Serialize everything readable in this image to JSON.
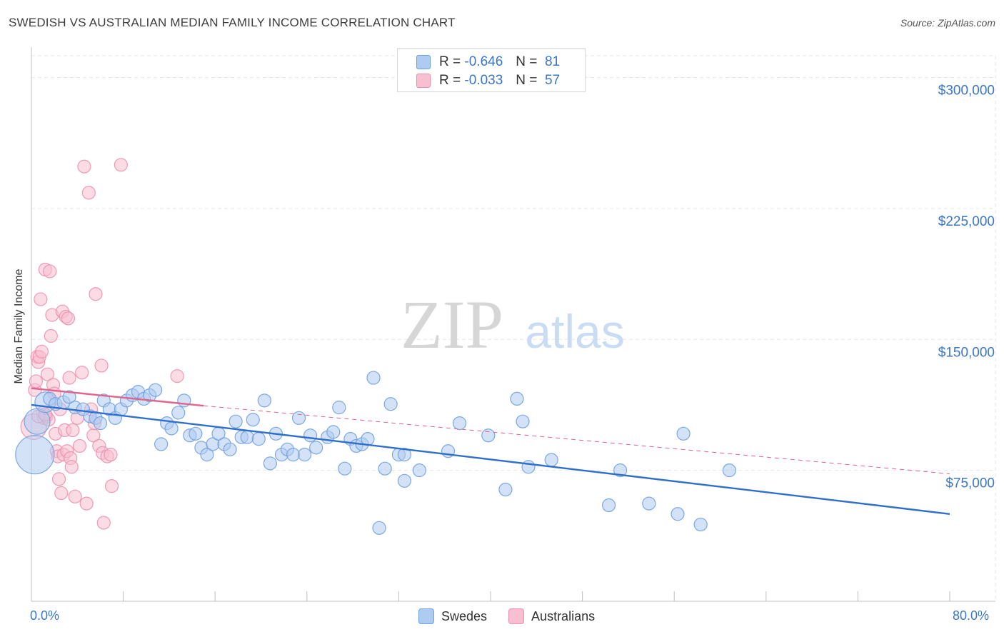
{
  "header": {
    "title": "SWEDISH VS AUSTRALIAN MEDIAN FAMILY INCOME CORRELATION CHART",
    "source": "Source: ZipAtlas.com"
  },
  "watermark": {
    "part1": "ZIP",
    "part2": "atlas"
  },
  "legend": {
    "rows": [
      {
        "r_label": "R =",
        "r_value": "-0.646",
        "n_label": "N =",
        "n_value": "81"
      },
      {
        "r_label": "R =",
        "r_value": "-0.033",
        "n_label": "N =",
        "n_value": "57"
      }
    ]
  },
  "colors": {
    "swedes_fill": "#aecbf1",
    "swedes_stroke": "#6fa0e0",
    "swedes_line": "#2f6fcc",
    "australians_fill": "#f7bfd0",
    "australians_stroke": "#ec8fae",
    "australians_line": "#e0648e",
    "axis_label": "#3a76c9",
    "grid": "#e6e6e6"
  },
  "chart_data": {
    "type": "scatter",
    "title": "SWEDISH VS AUSTRALIAN MEDIAN FAMILY INCOME CORRELATION CHART",
    "xlabel": "",
    "ylabel": "Median Family Income",
    "xlim": [
      0,
      80
    ],
    "ylim": [
      0,
      312500
    ],
    "x_tick_labels": [
      "0.0%",
      "80.0%"
    ],
    "y_ticks": [
      75000,
      150000,
      225000,
      300000
    ],
    "y_tick_labels": [
      "$75,000",
      "$150,000",
      "$225,000",
      "$300,000"
    ],
    "grid": true,
    "series": [
      {
        "name": "Swedes",
        "r": -0.646,
        "n": 81,
        "trend": {
          "x": [
            0,
            80
          ],
          "y": [
            112500,
            50000
          ]
        },
        "points": [
          {
            "x": 0.3,
            "y": 84000,
            "s": 3
          },
          {
            "x": 0.5,
            "y": 103000,
            "s": 2
          },
          {
            "x": 1.2,
            "y": 114000,
            "s": 1.6
          },
          {
            "x": 1.6,
            "y": 116000
          },
          {
            "x": 2.1,
            "y": 113000
          },
          {
            "x": 2.8,
            "y": 114000
          },
          {
            "x": 3.3,
            "y": 117000
          },
          {
            "x": 3.8,
            "y": 111000
          },
          {
            "x": 4.5,
            "y": 110000
          },
          {
            "x": 5.1,
            "y": 106000
          },
          {
            "x": 5.6,
            "y": 105000
          },
          {
            "x": 6.0,
            "y": 102000
          },
          {
            "x": 6.3,
            "y": 115000
          },
          {
            "x": 6.8,
            "y": 110000
          },
          {
            "x": 7.3,
            "y": 105000
          },
          {
            "x": 7.8,
            "y": 110000
          },
          {
            "x": 8.3,
            "y": 115000
          },
          {
            "x": 8.8,
            "y": 118000
          },
          {
            "x": 9.3,
            "y": 120000
          },
          {
            "x": 9.8,
            "y": 116000
          },
          {
            "x": 10.3,
            "y": 118000
          },
          {
            "x": 10.8,
            "y": 121000
          },
          {
            "x": 11.3,
            "y": 90000
          },
          {
            "x": 11.8,
            "y": 102000
          },
          {
            "x": 12.2,
            "y": 99000
          },
          {
            "x": 12.8,
            "y": 108000
          },
          {
            "x": 13.3,
            "y": 115000
          },
          {
            "x": 13.8,
            "y": 95000
          },
          {
            "x": 14.3,
            "y": 96000
          },
          {
            "x": 14.8,
            "y": 88000
          },
          {
            "x": 15.3,
            "y": 84000
          },
          {
            "x": 15.8,
            "y": 90000
          },
          {
            "x": 16.3,
            "y": 96000
          },
          {
            "x": 16.8,
            "y": 90000
          },
          {
            "x": 17.3,
            "y": 87000
          },
          {
            "x": 17.8,
            "y": 103000
          },
          {
            "x": 18.3,
            "y": 94000
          },
          {
            "x": 18.8,
            "y": 94000
          },
          {
            "x": 19.3,
            "y": 104000
          },
          {
            "x": 19.8,
            "y": 93000
          },
          {
            "x": 20.3,
            "y": 115000
          },
          {
            "x": 20.8,
            "y": 79000
          },
          {
            "x": 21.3,
            "y": 96000
          },
          {
            "x": 21.8,
            "y": 84000
          },
          {
            "x": 22.3,
            "y": 87000
          },
          {
            "x": 22.8,
            "y": 84000
          },
          {
            "x": 23.3,
            "y": 105000
          },
          {
            "x": 23.8,
            "y": 84000
          },
          {
            "x": 24.3,
            "y": 95000
          },
          {
            "x": 24.8,
            "y": 88000
          },
          {
            "x": 25.8,
            "y": 94000
          },
          {
            "x": 26.3,
            "y": 97000
          },
          {
            "x": 26.8,
            "y": 111000
          },
          {
            "x": 27.3,
            "y": 76000
          },
          {
            "x": 27.8,
            "y": 93000
          },
          {
            "x": 28.3,
            "y": 89000
          },
          {
            "x": 28.8,
            "y": 90000
          },
          {
            "x": 29.3,
            "y": 93000
          },
          {
            "x": 29.8,
            "y": 128000
          },
          {
            "x": 30.3,
            "y": 42000
          },
          {
            "x": 30.8,
            "y": 76000
          },
          {
            "x": 31.3,
            "y": 113000
          },
          {
            "x": 32.0,
            "y": 84000
          },
          {
            "x": 32.5,
            "y": 84000
          },
          {
            "x": 32.5,
            "y": 69000
          },
          {
            "x": 33.8,
            "y": 75000
          },
          {
            "x": 36.3,
            "y": 86000
          },
          {
            "x": 37.3,
            "y": 102000
          },
          {
            "x": 39.8,
            "y": 95000
          },
          {
            "x": 41.3,
            "y": 64000
          },
          {
            "x": 42.3,
            "y": 116000
          },
          {
            "x": 42.8,
            "y": 103000
          },
          {
            "x": 43.3,
            "y": 77000
          },
          {
            "x": 45.3,
            "y": 81000
          },
          {
            "x": 50.3,
            "y": 55000
          },
          {
            "x": 51.3,
            "y": 75000
          },
          {
            "x": 53.8,
            "y": 56000
          },
          {
            "x": 56.3,
            "y": 50000
          },
          {
            "x": 56.8,
            "y": 96000
          },
          {
            "x": 58.3,
            "y": 44000
          },
          {
            "x": 60.8,
            "y": 75000
          }
        ]
      },
      {
        "name": "Australians",
        "r": -0.033,
        "n": 57,
        "trend": {
          "x": [
            0,
            15
          ],
          "y": [
            122000,
            112000
          ],
          "dashed_x": [
            15,
            80
          ],
          "dashed_y": [
            112000,
            73000
          ]
        },
        "points": [
          {
            "x": 0.2,
            "y": 100000,
            "s": 2
          },
          {
            "x": 0.3,
            "y": 121000
          },
          {
            "x": 0.4,
            "y": 126000
          },
          {
            "x": 0.5,
            "y": 140000
          },
          {
            "x": 0.6,
            "y": 137000
          },
          {
            "x": 0.7,
            "y": 140000
          },
          {
            "x": 0.8,
            "y": 173000
          },
          {
            "x": 0.9,
            "y": 143000
          },
          {
            "x": 1.0,
            "y": 108000
          },
          {
            "x": 1.1,
            "y": 105000
          },
          {
            "x": 1.2,
            "y": 190000
          },
          {
            "x": 1.3,
            "y": 106000
          },
          {
            "x": 1.4,
            "y": 130000
          },
          {
            "x": 1.5,
            "y": 104000
          },
          {
            "x": 1.6,
            "y": 189000
          },
          {
            "x": 1.7,
            "y": 152000
          },
          {
            "x": 1.8,
            "y": 164000
          },
          {
            "x": 1.9,
            "y": 124000
          },
          {
            "x": 2.0,
            "y": 119000
          },
          {
            "x": 2.1,
            "y": 96000
          },
          {
            "x": 2.2,
            "y": 86000
          },
          {
            "x": 2.3,
            "y": 83000
          },
          {
            "x": 2.4,
            "y": 70000
          },
          {
            "x": 2.5,
            "y": 110000
          },
          {
            "x": 2.6,
            "y": 62000
          },
          {
            "x": 2.7,
            "y": 166000
          },
          {
            "x": 2.8,
            "y": 84000
          },
          {
            "x": 2.9,
            "y": 98000
          },
          {
            "x": 3.0,
            "y": 163000
          },
          {
            "x": 3.1,
            "y": 86000
          },
          {
            "x": 3.2,
            "y": 162000
          },
          {
            "x": 3.3,
            "y": 128000
          },
          {
            "x": 3.4,
            "y": 82000
          },
          {
            "x": 3.5,
            "y": 77000
          },
          {
            "x": 3.6,
            "y": 98000
          },
          {
            "x": 3.8,
            "y": 60000
          },
          {
            "x": 4.0,
            "y": 105000
          },
          {
            "x": 4.2,
            "y": 89000
          },
          {
            "x": 4.4,
            "y": 131000
          },
          {
            "x": 4.6,
            "y": 249000
          },
          {
            "x": 4.8,
            "y": 56000
          },
          {
            "x": 5.0,
            "y": 234000
          },
          {
            "x": 5.2,
            "y": 110000
          },
          {
            "x": 5.4,
            "y": 95000
          },
          {
            "x": 5.5,
            "y": 102000
          },
          {
            "x": 5.6,
            "y": 176000
          },
          {
            "x": 5.9,
            "y": 89000
          },
          {
            "x": 6.1,
            "y": 135000
          },
          {
            "x": 6.2,
            "y": 85000
          },
          {
            "x": 6.3,
            "y": 45000
          },
          {
            "x": 6.6,
            "y": 83000
          },
          {
            "x": 6.9,
            "y": 84000
          },
          {
            "x": 7.0,
            "y": 66000
          },
          {
            "x": 7.8,
            "y": 250000
          },
          {
            "x": 12.7,
            "y": 129000
          },
          {
            "x": 0.6,
            "y": 106000
          },
          {
            "x": 1.2,
            "y": 107000
          }
        ]
      }
    ]
  },
  "bottom_legend": {
    "items": [
      "Swedes",
      "Australians"
    ]
  }
}
